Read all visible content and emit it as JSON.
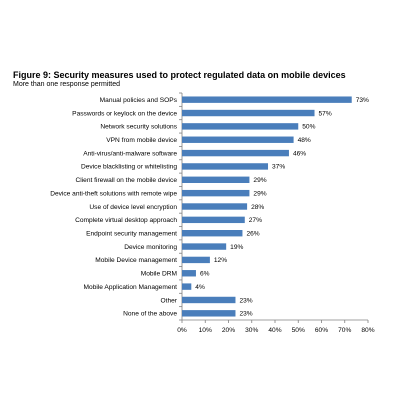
{
  "chart_data": {
    "type": "bar",
    "orientation": "horizontal",
    "title": "Figure 9: Security measures used to protect regulated data on mobile devices",
    "subtitle": "More than one response permitted",
    "categories": [
      "Manual policies and SOPs",
      "Passwords or keylock on the device",
      "Network security solutions",
      "VPN from mobile device",
      "Anti-virus/anti-malware software",
      "Device blacklisting or whitelisting",
      "Client firewall on the mobile device",
      "Device anti-theft solutions with remote wipe",
      "Use of device level encryption",
      "Complete virtual desktop approach",
      "Endpoint security management",
      "Device monitoring",
      "Mobile Device management",
      "Mobile DRM",
      "Mobile Application Management",
      "Other",
      "None of the above"
    ],
    "values": [
      73,
      57,
      50,
      48,
      46,
      37,
      29,
      29,
      28,
      27,
      26,
      19,
      12,
      6,
      4,
      23,
      23
    ],
    "value_labels": [
      "73%",
      "57%",
      "50%",
      "48%",
      "46%",
      "37%",
      "29%",
      "29%",
      "28%",
      "27%",
      "26%",
      "19%",
      "12%",
      "6%",
      "4%",
      "23%",
      "23%"
    ],
    "xlim": [
      0,
      80
    ],
    "x_ticks": [
      0,
      10,
      20,
      30,
      40,
      50,
      60,
      70,
      80
    ],
    "x_tick_labels": [
      "0%",
      "10%",
      "20%",
      "30%",
      "40%",
      "50%",
      "60%",
      "70%",
      "80%"
    ],
    "xlabel": "",
    "ylabel": "",
    "bar_color": "#4a7ebb",
    "grid": false,
    "legend": false
  }
}
